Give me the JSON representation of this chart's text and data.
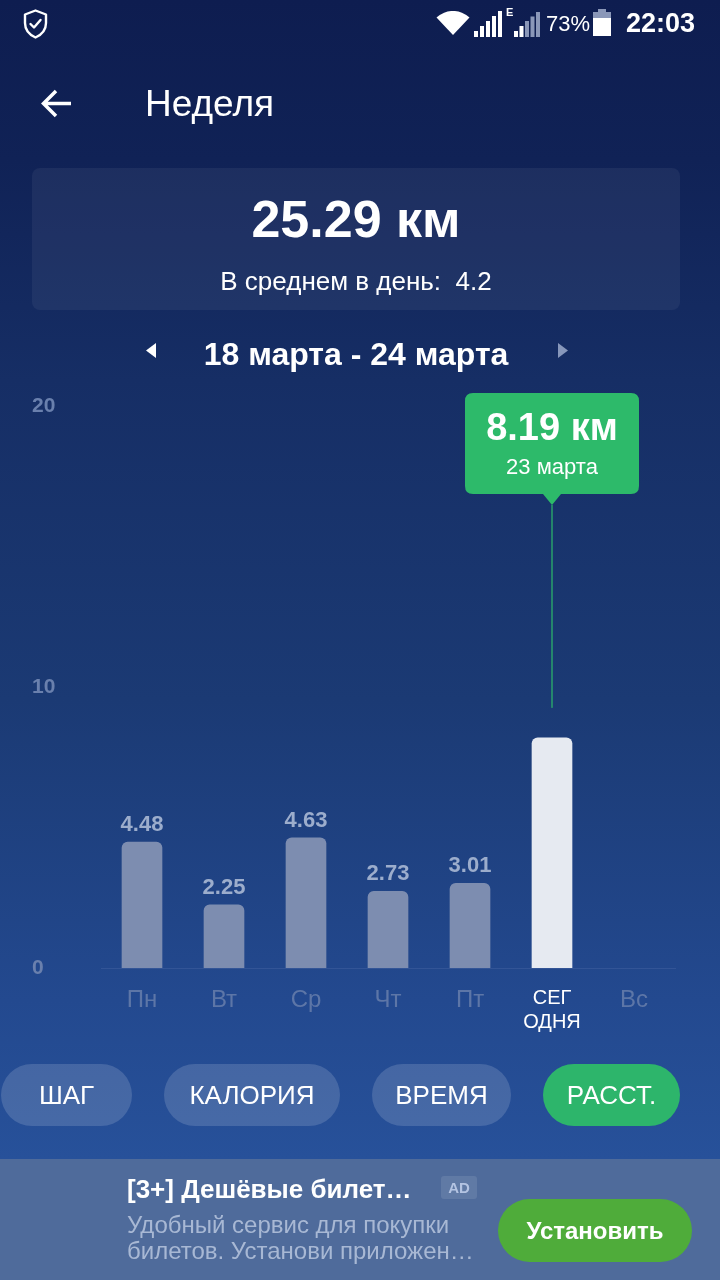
{
  "chart_data": {
    "type": "bar",
    "title": "Неделя",
    "subtitle": "18 марта - 24 марта",
    "categories": [
      "Пн",
      "Вт",
      "Ср",
      "Чт",
      "Пт",
      "СЕГОДНЯ",
      "Вс"
    ],
    "values": [
      4.48,
      2.25,
      4.63,
      2.73,
      3.01,
      8.19,
      null
    ],
    "colors": [
      "#7d8db0",
      "#7d8db0",
      "#7d8db0",
      "#7d8db0",
      "#7d8db0",
      "#e6eaf1",
      null
    ],
    "value_labels": [
      "4.48",
      "2.25",
      "4.63",
      "2.73",
      "3.01",
      null,
      null
    ],
    "ylim": [
      0,
      20
    ],
    "yticks": [
      0,
      10,
      20
    ],
    "annotations": [
      "E",
      "73%",
      "22:03",
      "25.29 км",
      "В среднем в день:  4.2",
      "8.19 км",
      "23 марта",
      "ШАГ",
      "КАЛОРИЯ",
      "ВРЕМЯ",
      "РАССТ.",
      "[3+] Дешёвые билет…",
      "AD",
      "Удобный сервис для покупки билетов. Установи приложен…",
      "Установить"
    ]
  }
}
